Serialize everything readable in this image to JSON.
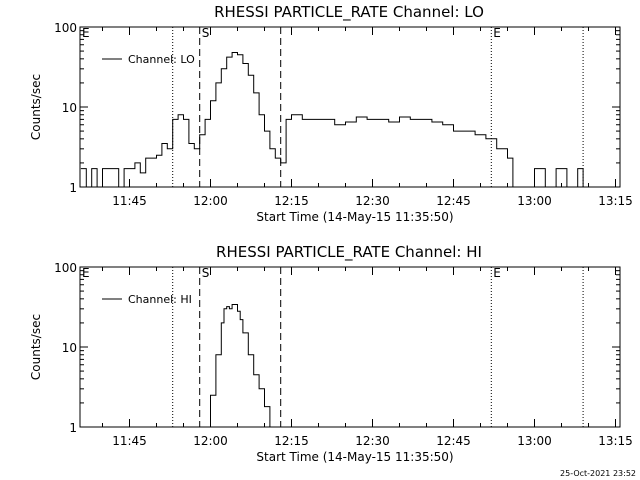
{
  "chart_data": [
    {
      "type": "line",
      "title": "RHESSI PARTICLE_RATE Channel: LO",
      "xlabel": "Start Time (14-May-15 11:35:50)",
      "ylabel": "Counts/sec",
      "y_scale": "log",
      "ylim": [
        1,
        100
      ],
      "xlim": [
        "11:35:50",
        "13:15:50"
      ],
      "y_ticks": [
        "1",
        "10",
        "100"
      ],
      "x_ticks": [
        "11:45",
        "12:00",
        "12:15",
        "12:30",
        "12:45",
        "13:00",
        "13:15"
      ],
      "legend": {
        "placement": "top-left",
        "entries": [
          "Channel: LO"
        ]
      },
      "markers": [
        {
          "label": "E",
          "time": "11:35:50",
          "style": "none"
        },
        {
          "label": "",
          "time": "11:53:00",
          "style": "dotted"
        },
        {
          "label": "S",
          "time": "11:58:00",
          "style": "dashed"
        },
        {
          "label": "",
          "time": "12:13:00",
          "style": "dashed"
        },
        {
          "label": "E",
          "time": "12:52:00",
          "style": "dotted"
        },
        {
          "label": "",
          "time": "13:09:00",
          "style": "dotted"
        }
      ],
      "series": [
        {
          "name": "Channel: LO",
          "x": [
            "11:36",
            "11:37",
            "11:38",
            "11:39",
            "11:40",
            "11:41",
            "11:42",
            "11:43",
            "11:44",
            "11:45",
            "11:46",
            "11:47",
            "11:48",
            "11:49",
            "11:50",
            "11:51",
            "11:52",
            "11:53",
            "11:54",
            "11:55",
            "11:56",
            "11:57",
            "11:58",
            "11:59",
            "12:00",
            "12:01",
            "12:02",
            "12:03",
            "12:04",
            "12:05",
            "12:06",
            "12:07",
            "12:08",
            "12:09",
            "12:10",
            "12:11",
            "12:12",
            "12:13",
            "12:14",
            "12:15",
            "12:17",
            "12:19",
            "12:21",
            "12:23",
            "12:25",
            "12:27",
            "12:29",
            "12:31",
            "12:33",
            "12:35",
            "12:37",
            "12:39",
            "12:41",
            "12:43",
            "12:45",
            "12:47",
            "12:49",
            "12:51",
            "12:52",
            "12:53",
            "12:55",
            "12:56",
            "12:58",
            "13:00",
            "13:02",
            "13:04",
            "13:06",
            "13:08",
            "13:09"
          ],
          "values": [
            1.7,
            1,
            1.7,
            1,
            1.7,
            1.7,
            1.7,
            1,
            1.7,
            1.7,
            2,
            1.5,
            2.3,
            2.3,
            2.5,
            3.5,
            3,
            7,
            8,
            7,
            3.5,
            3,
            4.5,
            7,
            12,
            20,
            30,
            42,
            48,
            45,
            35,
            25,
            15,
            8,
            5,
            3,
            2.3,
            2,
            7,
            8,
            7,
            7,
            7,
            6,
            6.5,
            7.5,
            7,
            7,
            6.5,
            7.5,
            7,
            7,
            6.5,
            6,
            5,
            5,
            4.5,
            4,
            4,
            3,
            2.3,
            1,
            1,
            1.7,
            1,
            1.7,
            1,
            1.7,
            1
          ]
        }
      ]
    },
    {
      "type": "line",
      "title": "RHESSI PARTICLE_RATE Channel: HI",
      "xlabel": "Start Time (14-May-15 11:35:50)",
      "ylabel": "Counts/sec",
      "y_scale": "log",
      "ylim": [
        1,
        100
      ],
      "xlim": [
        "11:35:50",
        "13:15:50"
      ],
      "y_ticks": [
        "1",
        "10",
        "100"
      ],
      "x_ticks": [
        "11:45",
        "12:00",
        "12:15",
        "12:30",
        "12:45",
        "13:00",
        "13:15"
      ],
      "legend": {
        "placement": "top-left",
        "entries": [
          "Channel: HI"
        ]
      },
      "markers": [
        {
          "label": "E",
          "time": "11:35:50",
          "style": "none"
        },
        {
          "label": "",
          "time": "11:53:00",
          "style": "dotted"
        },
        {
          "label": "S",
          "time": "11:58:00",
          "style": "dashed"
        },
        {
          "label": "",
          "time": "12:13:00",
          "style": "dashed"
        },
        {
          "label": "E",
          "time": "12:52:00",
          "style": "dotted"
        },
        {
          "label": "",
          "time": "13:09:00",
          "style": "dotted"
        }
      ],
      "series": [
        {
          "name": "Channel: HI",
          "x": [
            "11:59:30",
            "12:00",
            "12:01",
            "12:02",
            "12:02:30",
            "12:03",
            "12:03:30",
            "12:04",
            "12:05",
            "12:05:30",
            "12:06",
            "12:07",
            "12:08",
            "12:09",
            "12:10",
            "12:11"
          ],
          "values": [
            1,
            2.5,
            8,
            20,
            30,
            32,
            30,
            34,
            28,
            22,
            15,
            8,
            4.5,
            3,
            1.8,
            1
          ]
        }
      ]
    }
  ],
  "footer": {
    "timestamp": "25-Oct-2021 23:52"
  }
}
